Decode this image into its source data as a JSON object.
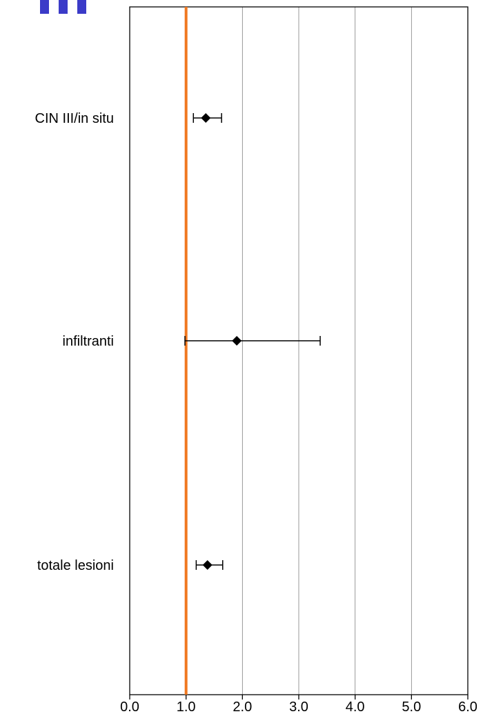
{
  "chart_data": {
    "type": "forest",
    "title": "",
    "xlabel": "",
    "ylabel": "",
    "xlim": [
      0,
      6
    ],
    "x_ticks": [
      "0.0",
      "1.0",
      "2.0",
      "3.0",
      "4.0",
      "5.0",
      "6.0"
    ],
    "x_tick_values": [
      0,
      1,
      2,
      3,
      4,
      5,
      6
    ],
    "grid": "vertical",
    "reference_line": {
      "x": 1.0,
      "color": "#f07820"
    },
    "marker_color": "#000000",
    "rows": [
      {
        "label": "CIN III/in situ",
        "estimate": 1.35,
        "lower": 1.13,
        "upper": 1.63
      },
      {
        "label": "infiltranti",
        "estimate": 1.9,
        "lower": 0.98,
        "upper": 3.38
      },
      {
        "label": "totale lesioni",
        "estimate": 1.38,
        "lower": 1.18,
        "upper": 1.65
      }
    ]
  },
  "decor": {
    "logo_color": "#3b3bc8"
  }
}
